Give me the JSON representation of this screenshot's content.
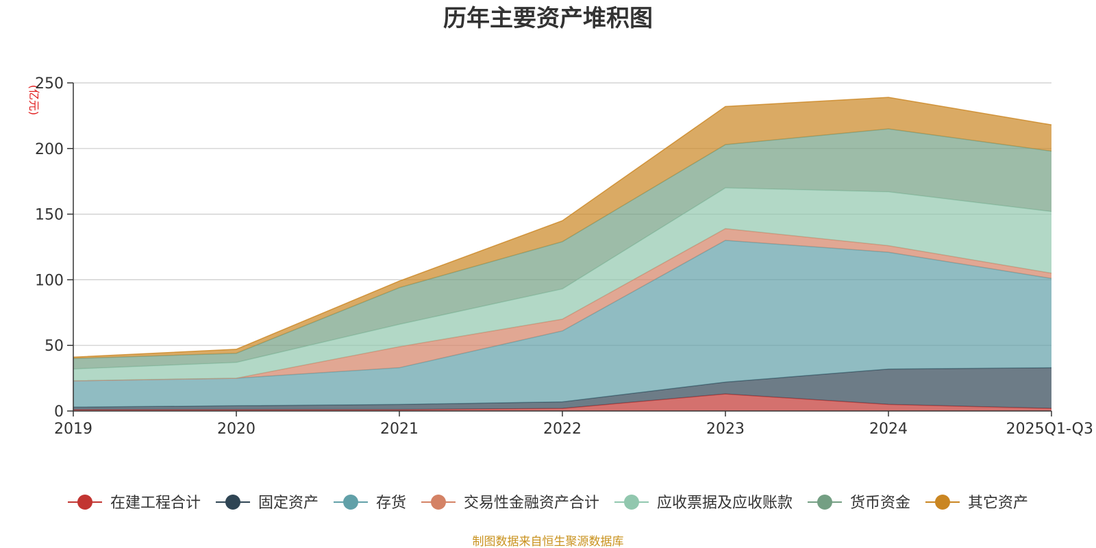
{
  "chart_data": {
    "type": "area",
    "stacked": true,
    "title": "历年主要资产堆积图",
    "unit_label": "(亿元)",
    "source_note": "制图数据来自恒生聚源数据库",
    "categories": [
      "2019",
      "2020",
      "2021",
      "2022",
      "2023",
      "2024",
      "2025Q1-Q3"
    ],
    "ylim": [
      0,
      250
    ],
    "yticks": [
      0,
      50,
      100,
      150,
      200,
      250
    ],
    "grid": true,
    "legend_position": "bottom",
    "series": [
      {
        "name": "在建工程合计",
        "color": "#c23531",
        "values": [
          1,
          1,
          1,
          2,
          13,
          5,
          2
        ]
      },
      {
        "name": "固定资产",
        "color": "#2f4554",
        "values": [
          2,
          3,
          4,
          5,
          9,
          27,
          31
        ]
      },
      {
        "name": "存货",
        "color": "#61a0a8",
        "values": [
          20,
          21,
          28,
          54,
          108,
          89,
          68
        ]
      },
      {
        "name": "交易性金融资产合计",
        "color": "#d48265",
        "values": [
          0,
          0,
          16,
          9,
          9,
          5,
          4
        ]
      },
      {
        "name": "应收票据及应收账款",
        "color": "#91c7ae",
        "values": [
          9,
          12,
          17,
          23,
          31,
          41,
          47
        ]
      },
      {
        "name": "货币资金",
        "color": "#749f83",
        "values": [
          8,
          7,
          28,
          36,
          33,
          48,
          46
        ]
      },
      {
        "name": "其它资产",
        "color": "#ca8622",
        "values": [
          1,
          3,
          5,
          16,
          29,
          24,
          20
        ]
      }
    ]
  }
}
